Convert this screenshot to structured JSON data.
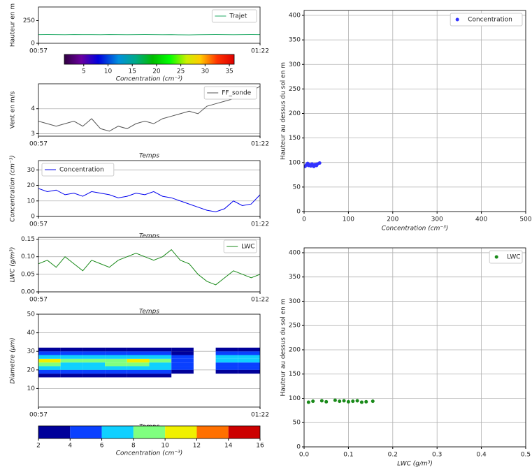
{
  "chart_data": [
    {
      "type": "line",
      "ylabel": "Hauteur en m",
      "xlim": [
        57,
        82
      ],
      "ylim": [
        0,
        400
      ],
      "yticks": [
        0,
        250
      ],
      "xticks": [
        {
          "value": 57,
          "label": "00:57"
        },
        {
          "value": 82,
          "label": "01:22"
        }
      ],
      "grid": false,
      "legend": "upper right",
      "x": [
        57,
        58,
        59,
        60,
        61,
        62,
        63,
        64,
        65,
        66,
        67,
        68,
        69,
        70,
        71,
        72,
        73,
        74,
        75,
        76,
        77,
        78,
        79,
        80,
        81,
        82
      ],
      "series": [
        {
          "name": "Trajet",
          "color": "#22aa66",
          "values": [
            95,
            96,
            95,
            94,
            96,
            95,
            95,
            94,
            96,
            95,
            94,
            95,
            96,
            95,
            94,
            95,
            93,
            92,
            94,
            95,
            96,
            95,
            94,
            95,
            96,
            95
          ]
        }
      ],
      "colorbar": {
        "cmap": "nipy_spectral",
        "lim": [
          1,
          36
        ],
        "ticks": [
          5,
          10,
          15,
          20,
          25,
          30,
          35
        ],
        "label": "Concentration  (cm⁻³)"
      }
    },
    {
      "type": "line",
      "ylabel": "Vent en m/s",
      "ylabel_color": "#2e9a2e",
      "xlabel": "Temps",
      "xlim": [
        57,
        82
      ],
      "ylim": [
        2.9,
        5.0
      ],
      "yticks": [
        3,
        4
      ],
      "xticks": [
        {
          "value": 57,
          "label": "00:57"
        },
        {
          "value": 82,
          "label": "01:22"
        }
      ],
      "grid": true,
      "legend": "upper right",
      "x": [
        57,
        58,
        59,
        60,
        61,
        62,
        63,
        64,
        65,
        66,
        67,
        68,
        69,
        70,
        71,
        72,
        73,
        74,
        75,
        76,
        77,
        78,
        79,
        80,
        81,
        82
      ],
      "series": [
        {
          "name": "FF_sonde",
          "color": "#555555",
          "values": [
            3.5,
            3.4,
            3.3,
            3.4,
            3.5,
            3.3,
            3.6,
            3.2,
            3.1,
            3.3,
            3.2,
            3.4,
            3.5,
            3.4,
            3.6,
            3.7,
            3.8,
            3.9,
            3.8,
            4.1,
            4.2,
            4.3,
            4.4,
            4.5,
            4.7,
            4.9
          ]
        }
      ]
    },
    {
      "type": "line",
      "ylabel": "Concentration  (cm⁻³)",
      "ylabel_color": "#2222cc",
      "xlabel": "Temps",
      "xlim": [
        57,
        82
      ],
      "ylim": [
        0,
        36
      ],
      "yticks": [
        0,
        10,
        20,
        30
      ],
      "xticks": [
        {
          "value": 57,
          "label": "00:57"
        },
        {
          "value": 82,
          "label": "01:22"
        }
      ],
      "grid": true,
      "legend": "upper left",
      "x": [
        57,
        58,
        59,
        60,
        61,
        62,
        63,
        64,
        65,
        66,
        67,
        68,
        69,
        70,
        71,
        72,
        73,
        74,
        75,
        76,
        77,
        78,
        79,
        80,
        81,
        82
      ],
      "series": [
        {
          "name": "Concentration",
          "color": "#0000ee",
          "values": [
            18,
            16,
            17,
            14,
            15,
            13,
            16,
            15,
            14,
            12,
            13,
            15,
            14,
            16,
            13,
            12,
            10,
            8,
            6,
            4,
            3,
            5,
            10,
            7,
            8,
            14
          ]
        }
      ]
    },
    {
      "type": "line",
      "ylabel": "LWC  (g/m³)",
      "ylabel_color": "#2e9a2e",
      "xlabel": "Temps",
      "xlim": [
        57,
        82
      ],
      "ylim": [
        0,
        0.155
      ],
      "yticks": [
        {
          "value": 0,
          "label": "0.00"
        },
        0.05,
        {
          "value": 0.1,
          "label": "0.10"
        },
        0.15
      ],
      "xticks": [
        {
          "value": 57,
          "label": "00:57"
        },
        {
          "value": 82,
          "label": "01:22"
        }
      ],
      "grid": true,
      "legend": "upper right",
      "x": [
        57,
        58,
        59,
        60,
        61,
        62,
        63,
        64,
        65,
        66,
        67,
        68,
        69,
        70,
        71,
        72,
        73,
        74,
        75,
        76,
        77,
        78,
        79,
        80,
        81,
        82
      ],
      "series": [
        {
          "name": "LWC",
          "color": "#1a8a1a",
          "values": [
            0.08,
            0.09,
            0.07,
            0.1,
            0.08,
            0.06,
            0.09,
            0.08,
            0.07,
            0.09,
            0.1,
            0.11,
            0.1,
            0.09,
            0.1,
            0.12,
            0.09,
            0.08,
            0.05,
            0.03,
            0.02,
            0.04,
            0.06,
            0.05,
            0.04,
            0.05
          ]
        }
      ]
    },
    {
      "type": "heatmap",
      "ylabel": "Diametre  (µm)",
      "xlabel": "Temps",
      "xlim": [
        57,
        82
      ],
      "ylim": [
        0,
        50
      ],
      "yticks": [
        10,
        20,
        30,
        40,
        50
      ],
      "xticks": [
        {
          "value": 57,
          "label": "00:57"
        },
        {
          "value": 82,
          "label": "01:22"
        }
      ],
      "grid": true,
      "xbins": [
        57,
        59.5,
        62,
        64.5,
        67,
        69.5,
        72,
        74.5,
        77,
        79.5,
        82
      ],
      "ybins": [
        16,
        18,
        20,
        22,
        24,
        26,
        28,
        30,
        32
      ],
      "values": [
        [
          3,
          3,
          2,
          3,
          3,
          2,
          null,
          null,
          null,
          null
        ],
        [
          5,
          4,
          4,
          5,
          5,
          4,
          3,
          null,
          3,
          3
        ],
        [
          7,
          6,
          6,
          6,
          7,
          6,
          4,
          null,
          4,
          4
        ],
        [
          9,
          7,
          7,
          8,
          9,
          7,
          5,
          null,
          5,
          5
        ],
        [
          10,
          8,
          8,
          9,
          10,
          8,
          5,
          null,
          6,
          6
        ],
        [
          7,
          6,
          6,
          7,
          7,
          6,
          5,
          null,
          6,
          6
        ],
        [
          5,
          4,
          4,
          5,
          5,
          4,
          3,
          null,
          4,
          4
        ],
        [
          3,
          2,
          3,
          3,
          3,
          2,
          2,
          null,
          3,
          3
        ]
      ],
      "colorbar": {
        "bounds": [
          2,
          4,
          6,
          8,
          10,
          12,
          14,
          16
        ],
        "colors": [
          "#00009a",
          "#0a40ff",
          "#10d0ff",
          "#80ff80",
          "#f0f000",
          "#ff7000",
          "#cc0000"
        ],
        "label": "Concentration  (cm⁻³)"
      }
    },
    {
      "type": "scatter",
      "ylabel": "Hauteur au dessus du sol en m",
      "ylabel_color": "#2222cc",
      "xlabel": "Concentration  (cm⁻³)",
      "xlim": [
        0,
        500
      ],
      "ylim": [
        0,
        410
      ],
      "xticks": [
        0,
        100,
        200,
        300,
        400,
        500
      ],
      "yticks": [
        0,
        50,
        100,
        150,
        200,
        250,
        300,
        350,
        400
      ],
      "grid": true,
      "legend": "upper right",
      "series": [
        {
          "name": "Concentration",
          "color": "#3333ff",
          "x": [
            2,
            5,
            8,
            10,
            12,
            15,
            18,
            20,
            22,
            25,
            28,
            30,
            35
          ],
          "values": [
            92,
            95,
            98,
            94,
            96,
            93,
            97,
            95,
            92,
            96,
            94,
            97,
            99
          ]
        }
      ]
    },
    {
      "type": "scatter",
      "ylabel": "Hauteur au dessus du sol en m",
      "ylabel_color": "#2e9a2e",
      "xlabel": "LWC  (g/m³)",
      "xlabel_color": "#2e9a2e",
      "xlim": [
        0,
        0.5
      ],
      "ylim": [
        0,
        410
      ],
      "xticks": [
        {
          "value": 0,
          "label": "0.0"
        },
        0.1,
        0.2,
        0.3,
        0.4,
        0.5
      ],
      "yticks": [
        0,
        50,
        100,
        150,
        200,
        250,
        300,
        350,
        400
      ],
      "grid": true,
      "legend": "upper right",
      "series": [
        {
          "name": "LWC",
          "color": "#1a8a1a",
          "x": [
            0.01,
            0.02,
            0.04,
            0.05,
            0.07,
            0.08,
            0.09,
            0.1,
            0.11,
            0.12,
            0.13,
            0.14,
            0.155
          ],
          "values": [
            92,
            94,
            95,
            93,
            96,
            94,
            95,
            93,
            94,
            95,
            92,
            93,
            94
          ]
        }
      ]
    }
  ]
}
